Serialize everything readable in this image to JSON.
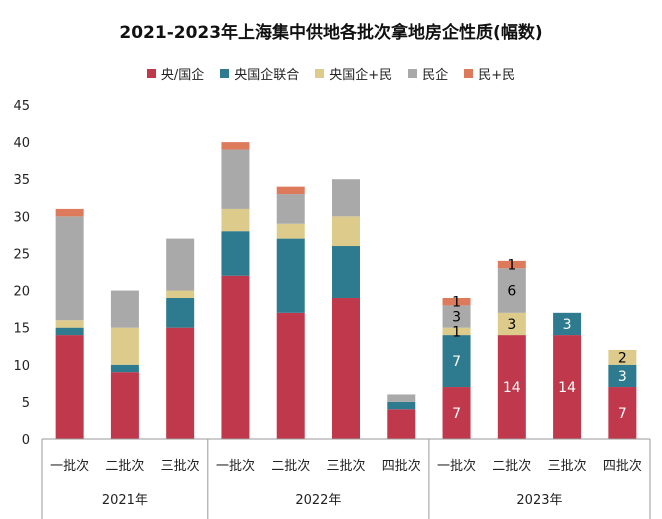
{
  "chart_data": {
    "type": "bar",
    "stacked": true,
    "title": "2021-2023年上海集中供地各批次拿地房企性质(幅数)",
    "xlabel": "",
    "ylabel": "",
    "ylim": [
      0,
      45
    ],
    "yticks": [
      0,
      5,
      10,
      15,
      20,
      25,
      30,
      35,
      40,
      45
    ],
    "grid": false,
    "legend_position": "top",
    "categories": [
      "一批次",
      "二批次",
      "三批次",
      "一批次",
      "二批次",
      "三批次",
      "四批次",
      "一批次",
      "二批次",
      "三批次",
      "四批次"
    ],
    "groups": [
      {
        "label": "2021年",
        "count": 3
      },
      {
        "label": "2022年",
        "count": 4
      },
      {
        "label": "2023年",
        "count": 4
      }
    ],
    "series": [
      {
        "name": "央/国企",
        "color": "#c0384b",
        "values": [
          14,
          9,
          15,
          22,
          17,
          19,
          4,
          7,
          14,
          14,
          7
        ]
      },
      {
        "name": "央国企联合",
        "color": "#2e7a8e",
        "values": [
          1,
          1,
          4,
          6,
          10,
          7,
          1,
          7,
          0,
          3,
          3
        ]
      },
      {
        "name": "央国企+民",
        "color": "#dccb8b",
        "values": [
          1,
          5,
          1,
          3,
          2,
          4,
          0,
          1,
          3,
          0,
          2
        ]
      },
      {
        "name": "民企",
        "color": "#a9a9a9",
        "values": [
          14,
          5,
          7,
          8,
          4,
          5,
          1,
          3,
          6,
          0,
          0
        ]
      },
      {
        "name": "民+民",
        "color": "#de7a5c",
        "values": [
          1,
          0,
          0,
          1,
          1,
          0,
          0,
          1,
          1,
          0,
          0
        ]
      }
    ],
    "data_labels": [
      {
        "category_index": 7,
        "series_index": 0,
        "text": "7",
        "color": "#ffffff"
      },
      {
        "category_index": 7,
        "series_index": 1,
        "text": "7",
        "color": "#ffffff"
      },
      {
        "category_index": 7,
        "series_index": 2,
        "text": "1",
        "color": "#000000"
      },
      {
        "category_index": 7,
        "series_index": 3,
        "text": "3",
        "color": "#000000"
      },
      {
        "category_index": 7,
        "series_index": 4,
        "text": "1",
        "color": "#000000"
      },
      {
        "category_index": 8,
        "series_index": 0,
        "text": "14",
        "color": "#ffffff"
      },
      {
        "category_index": 8,
        "series_index": 2,
        "text": "3",
        "color": "#000000"
      },
      {
        "category_index": 8,
        "series_index": 3,
        "text": "6",
        "color": "#000000"
      },
      {
        "category_index": 8,
        "series_index": 4,
        "text": "1",
        "color": "#000000"
      },
      {
        "category_index": 9,
        "series_index": 0,
        "text": "14",
        "color": "#ffffff"
      },
      {
        "category_index": 9,
        "series_index": 1,
        "text": "3",
        "color": "#ffffff"
      },
      {
        "category_index": 10,
        "series_index": 0,
        "text": "7",
        "color": "#ffffff"
      },
      {
        "category_index": 10,
        "series_index": 1,
        "text": "3",
        "color": "#ffffff"
      },
      {
        "category_index": 10,
        "series_index": 2,
        "text": "2",
        "color": "#000000"
      }
    ]
  }
}
